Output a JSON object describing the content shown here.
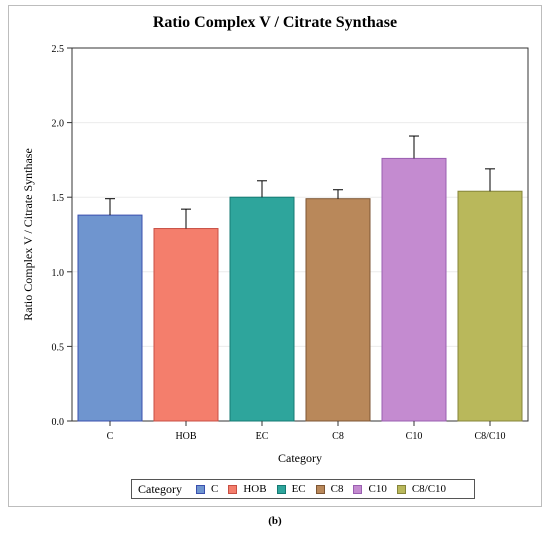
{
  "caption": "(b)",
  "chart_data": {
    "type": "bar",
    "title": "Ratio Complex V / Citrate Synthase",
    "xlabel": "Category",
    "ylabel": "Ratio Complex V / Citrate Synthase",
    "categories": [
      "C",
      "HOB",
      "EC",
      "C8",
      "C10",
      "C8/C10"
    ],
    "values": [
      1.38,
      1.29,
      1.5,
      1.49,
      1.76,
      1.54
    ],
    "error_upper": [
      1.49,
      1.42,
      1.61,
      1.55,
      1.91,
      1.69
    ],
    "ylim": [
      0,
      2.5
    ],
    "yticks": [
      "0.0",
      "0.5",
      "1.0",
      "1.5",
      "2.0",
      "2.5"
    ],
    "grid": true,
    "legend": {
      "title": "Category",
      "position": "bottom",
      "entries": [
        "C",
        "HOB",
        "EC",
        "C8",
        "C10",
        "C8/C10"
      ]
    },
    "colors": {
      "fills": [
        "#6f95cf",
        "#f47e6c",
        "#2ea59c",
        "#b9885a",
        "#c48bd0",
        "#b9b85b"
      ],
      "edges": [
        "#3a4fae",
        "#c84f44",
        "#157a73",
        "#7d5634",
        "#9a5fb1",
        "#85843a"
      ]
    }
  }
}
